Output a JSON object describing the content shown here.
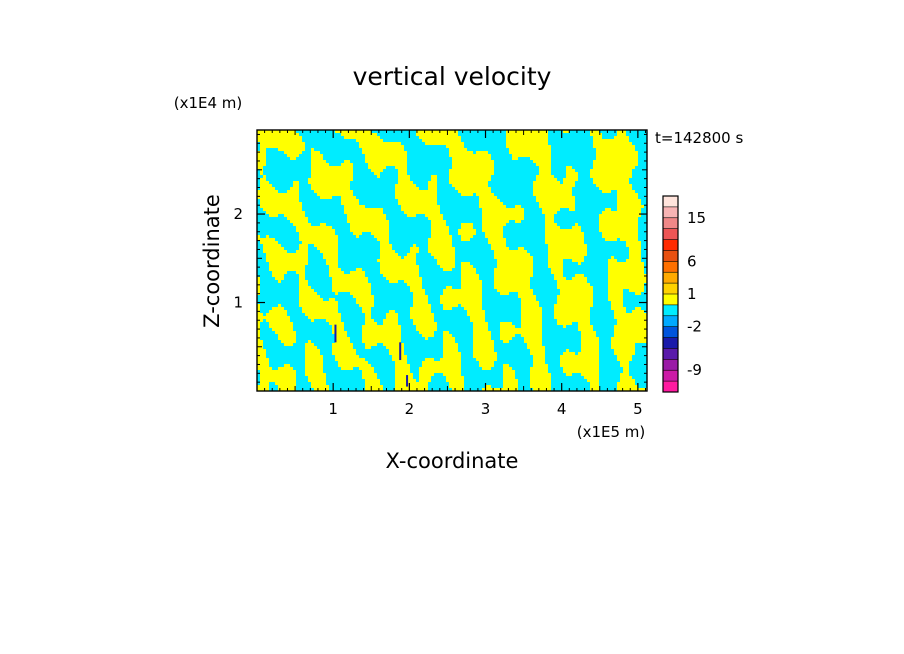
{
  "chart_data": {
    "type": "heatmap",
    "title": "vertical velocity",
    "xlabel": "X-coordinate",
    "ylabel": "Z-coordinate",
    "x_scale_label": "(x1E5 m)",
    "y_scale_label": "(x1E4 m)",
    "time_label": "t=142800 s",
    "xlim": [
      0,
      5.12
    ],
    "ylim": [
      0,
      2.95
    ],
    "x_ticks": [
      1,
      2,
      3,
      4,
      5
    ],
    "x_tick_labels": [
      "1",
      "2",
      "3",
      "4",
      "5"
    ],
    "y_ticks": [
      1,
      2
    ],
    "y_tick_labels": [
      "1",
      "2"
    ],
    "colorbar": {
      "colors": [
        "#ff1aa0",
        "#cc1aa6",
        "#9a1aa6",
        "#5a1aaa",
        "#1a1aaa",
        "#0055dd",
        "#00aaff",
        "#00ecff",
        "#ffff00",
        "#ffd200",
        "#ffaa00",
        "#ff7000",
        "#e85010",
        "#ff2a00",
        "#ee5555",
        "#f08888",
        "#f8b4b4",
        "#ffe4dc"
      ],
      "tick_labels": [
        "-9",
        "-2",
        "1",
        "6",
        "15"
      ],
      "tick_after_color_index": [
        1,
        5,
        8,
        11,
        15
      ]
    },
    "field_description": {
      "dominant_negative_color": "#00ecff",
      "dominant_positive_color": "#ffff00",
      "negative_extreme_color": "#1a1aaa"
    }
  }
}
